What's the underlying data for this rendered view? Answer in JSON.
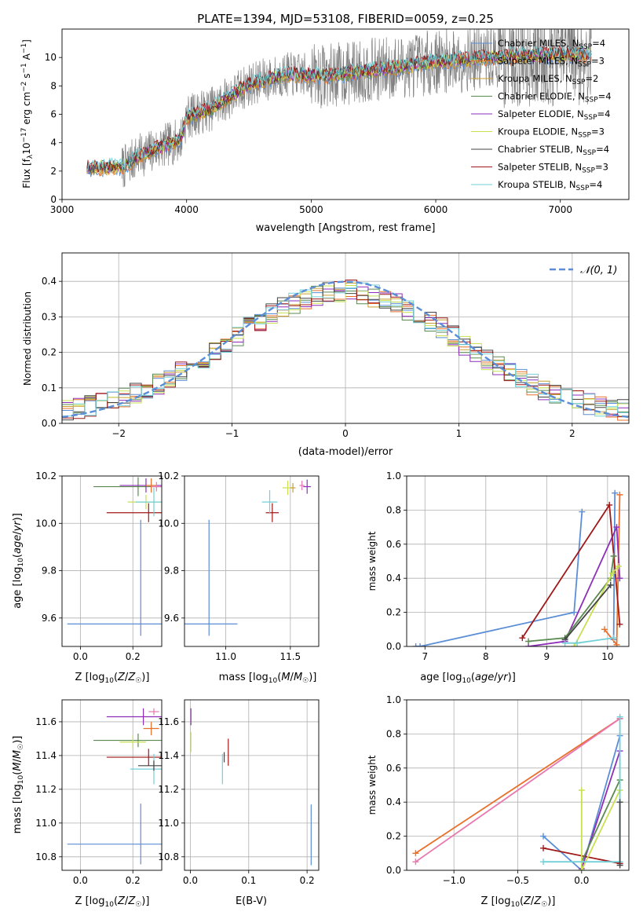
{
  "figure": {
    "title": "PLATE=1394, MJD=53108, FIBERID=0059, z=0.25"
  },
  "colors": {
    "chabrier_miles": "#5b8ed6",
    "salpeter_miles": "#e8702a",
    "kroupa_miles": "#c8a030",
    "chabrier_elodie": "#5a8a50",
    "salpeter_elodie": "#8e2eb8",
    "kroupa_elodie": "#c8e050",
    "chabrier_stelib": "#444444",
    "salpeter_stelib": "#a01818",
    "kroupa_stelib": "#70d0d8",
    "gauss": "#5b8ed6",
    "grid": "#b0b0b0",
    "data_gray": "#808080",
    "pink": "#e878b0"
  },
  "chart_data": [
    {
      "id": "spectrum",
      "type": "line",
      "xlabel": "wavelength [Angstrom, rest frame]",
      "ylabel": "Flux [f_λ10^-17 erg cm^-2 s^-1 A^-1]",
      "xlim": [
        3000,
        7550
      ],
      "ylim": [
        0,
        12
      ],
      "xticks": [
        3000,
        4000,
        5000,
        6000,
        7000
      ],
      "yticks": [
        0,
        2,
        4,
        6,
        8,
        10
      ],
      "legend_position": "upper-right",
      "legend": [
        {
          "name": "Chabrier MILES, N_SSP=4",
          "color": "#5b8ed6"
        },
        {
          "name": "Salpeter MILES, N_SSP=3",
          "color": "#e8702a"
        },
        {
          "name": "Kroupa MILES, N_SSP=2",
          "color": "#c8a030"
        },
        {
          "name": "Chabrier ELODIE, N_SSP=4",
          "color": "#5a8a50"
        },
        {
          "name": "Salpeter ELODIE, N_SSP=4",
          "color": "#8e2eb8"
        },
        {
          "name": "Kroupa ELODIE, N_SSP=3",
          "color": "#c8e050"
        },
        {
          "name": "Chabrier STELIB, N_SSP=4",
          "color": "#444444"
        },
        {
          "name": "Salpeter STELIB, N_SSP=3",
          "color": "#a01818"
        },
        {
          "name": "Kroupa STELIB, N_SSP=4",
          "color": "#70d0d8"
        }
      ],
      "continuum": {
        "x": [
          3200,
          3500,
          3600,
          3800,
          3950,
          4000,
          4200,
          4500,
          4800,
          5100,
          5400,
          5700,
          6000,
          6300,
          6600,
          7000,
          7250
        ],
        "y": [
          2.2,
          2.3,
          3.0,
          3.7,
          4.2,
          5.8,
          6.4,
          8.1,
          8.8,
          8.7,
          9.0,
          9.3,
          9.7,
          9.9,
          10.1,
          10.2,
          10.2
        ]
      }
    },
    {
      "id": "residuals",
      "type": "bar",
      "xlabel": "(data-model)/error",
      "ylabel": "Normed distribution",
      "xlim": [
        -2.5,
        2.5
      ],
      "ylim": [
        0,
        0.48
      ],
      "xticks": [
        -2,
        -1,
        0,
        1,
        2
      ],
      "yticks": [
        0.0,
        0.1,
        0.2,
        0.3,
        0.4
      ],
      "legend": [
        {
          "name": "𝒩(0, 1)",
          "color": "#5b8ed6"
        }
      ],
      "gaussian": {
        "mu": 0,
        "sigma": 1
      }
    },
    {
      "id": "age_vs_Z",
      "type": "scatter",
      "xlabel": "Z [log10(Z/Z☉)]",
      "ylabel": "age [log10(age/yr)]",
      "xlim": [
        -0.07,
        0.31
      ],
      "ylim": [
        9.48,
        10.2
      ],
      "xticks": [
        0.0,
        0.2
      ],
      "yticks": [
        9.6,
        9.8,
        10.0,
        10.2
      ],
      "points": [
        {
          "x": 0.23,
          "y": 9.575,
          "xerr": 0.28,
          "yerr": [
            0.05,
            0.44
          ],
          "color": "#5b8ed6"
        },
        {
          "x": 0.26,
          "y": 10.045,
          "xerr": 0.16,
          "yerr": [
            0.04,
            0.04
          ],
          "color": "#a01818"
        },
        {
          "x": 0.22,
          "y": 10.155,
          "xerr": 0.17,
          "yerr": [
            0.04,
            0.04
          ],
          "color": "#5a8a50"
        },
        {
          "x": 0.25,
          "y": 10.16,
          "xerr": 0.1,
          "yerr": [
            0.03,
            0.03
          ],
          "color": "#8e2eb8"
        },
        {
          "x": 0.27,
          "y": 10.16,
          "xerr": 0.02,
          "yerr": [
            0.03,
            0.03
          ],
          "color": "#e8702a"
        },
        {
          "x": 0.25,
          "y": 10.09,
          "xerr": 0.07,
          "yerr": [
            0.03,
            0.03
          ],
          "color": "#c8e050"
        },
        {
          "x": 0.28,
          "y": 10.09,
          "xerr": 0.07,
          "yerr": [
            0.06,
            0.06
          ],
          "color": "#70d0d8"
        },
        {
          "x": 0.29,
          "y": 10.155,
          "xerr": 0.02,
          "yerr": [
            0.02,
            0.02
          ],
          "color": "#e878b0"
        }
      ]
    },
    {
      "id": "age_vs_mass",
      "type": "scatter",
      "xlabel": "mass [log10(M/M☉)]",
      "ylabel": "",
      "xlim": [
        10.68,
        11.72
      ],
      "ylim": [
        9.48,
        10.2
      ],
      "xticks": [
        11.0,
        11.5
      ],
      "yticks": [
        9.6,
        9.8,
        10.0,
        10.2
      ],
      "points": [
        {
          "x": 10.87,
          "y": 9.575,
          "xerr": 0.22,
          "yerr": [
            0.05,
            0.44
          ],
          "color": "#5b8ed6"
        },
        {
          "x": 11.36,
          "y": 10.045,
          "xerr": 0.05,
          "yerr": [
            0.04,
            0.04
          ],
          "color": "#a01818"
        },
        {
          "x": 11.34,
          "y": 10.09,
          "xerr": 0.06,
          "yerr": [
            0.05,
            0.05
          ],
          "color": "#70d0d8"
        },
        {
          "x": 11.48,
          "y": 10.15,
          "xerr": 0.04,
          "yerr": [
            0.03,
            0.03
          ],
          "color": "#c8e050"
        },
        {
          "x": 11.52,
          "y": 10.15,
          "xerr": 0.02,
          "yerr": [
            0.02,
            0.02
          ],
          "color": "#c8a030"
        },
        {
          "x": 11.63,
          "y": 10.155,
          "xerr": 0.03,
          "yerr": [
            0.03,
            0.03
          ],
          "color": "#8e2eb8"
        },
        {
          "x": 11.59,
          "y": 10.16,
          "xerr": 0.02,
          "yerr": [
            0.02,
            0.02
          ],
          "color": "#e878b0"
        }
      ]
    },
    {
      "id": "weight_vs_age",
      "type": "line",
      "xlabel": "age [log10(age/yr)]",
      "ylabel": "mass weight",
      "xlim": [
        6.7,
        10.35
      ],
      "ylim": [
        0,
        1
      ],
      "xticks": [
        7,
        8,
        9,
        10
      ],
      "yticks": [
        0.0,
        0.2,
        0.4,
        0.6,
        0.8,
        1.0
      ],
      "series": [
        {
          "color": "#5b8ed6",
          "x": [
            6.85,
            6.92,
            9.45,
            9.58
          ],
          "y": [
            0.0,
            0.0,
            0.2,
            0.79
          ]
        },
        {
          "color": "#5b8ed6",
          "x": [
            10.1,
            10.12
          ],
          "y": [
            0.04,
            0.9
          ]
        },
        {
          "color": "#e8702a",
          "x": [
            9.95,
            10.15,
            10.2
          ],
          "y": [
            0.1,
            0.01,
            0.89
          ]
        },
        {
          "color": "#8e2eb8",
          "x": [
            8.7,
            9.3,
            10.15,
            10.2
          ],
          "y": [
            0.0,
            0.03,
            0.7,
            0.4
          ]
        },
        {
          "color": "#a01818",
          "x": [
            8.6,
            10.03,
            10.2
          ],
          "y": [
            0.05,
            0.83,
            0.13
          ]
        },
        {
          "color": "#5a8a50",
          "x": [
            8.7,
            9.3,
            10.05,
            10.1
          ],
          "y": [
            0.03,
            0.05,
            0.4,
            0.53
          ]
        },
        {
          "color": "#c8e050",
          "x": [
            9.45,
            10.08,
            10.18
          ],
          "y": [
            0.0,
            0.43,
            0.47
          ]
        },
        {
          "color": "#444444",
          "x": [
            9.3,
            10.05
          ],
          "y": [
            0.04,
            0.36
          ]
        },
        {
          "color": "#70d0d8",
          "x": [
            9.3,
            9.5,
            10.1
          ],
          "y": [
            0.02,
            0.02,
            0.05
          ]
        }
      ]
    },
    {
      "id": "mass_vs_Z",
      "type": "scatter",
      "xlabel": "Z [log10(Z/Z☉)]",
      "ylabel": "mass [log10(M/M☉)]",
      "xlim": [
        -0.07,
        0.31
      ],
      "ylim": [
        10.72,
        11.73
      ],
      "xticks": [
        0.0,
        0.2
      ],
      "yticks": [
        10.8,
        11.0,
        11.2,
        11.4,
        11.6
      ],
      "points": [
        {
          "x": 0.23,
          "y": 10.875,
          "xerr": 0.28,
          "yerr": [
            0.12,
            0.24
          ],
          "color": "#5b8ed6"
        },
        {
          "x": 0.26,
          "y": 11.39,
          "xerr": 0.16,
          "yerr": [
            0.05,
            0.05
          ],
          "color": "#a01818"
        },
        {
          "x": 0.22,
          "y": 11.49,
          "xerr": 0.17,
          "yerr": [
            0.04,
            0.04
          ],
          "color": "#5a8a50"
        },
        {
          "x": 0.24,
          "y": 11.63,
          "xerr": 0.14,
          "yerr": [
            0.05,
            0.05
          ],
          "color": "#8e2eb8"
        },
        {
          "x": 0.27,
          "y": 11.56,
          "xerr": 0.03,
          "yerr": [
            0.04,
            0.04
          ],
          "color": "#e8702a"
        },
        {
          "x": 0.2,
          "y": 11.48,
          "xerr": 0.05,
          "yerr": [
            0.04,
            0.04
          ],
          "color": "#c8e050"
        },
        {
          "x": 0.28,
          "y": 11.32,
          "xerr": 0.09,
          "yerr": [
            0.09,
            0.09
          ],
          "color": "#70d0d8"
        },
        {
          "x": 0.28,
          "y": 11.66,
          "xerr": 0.02,
          "yerr": [
            0.02,
            0.02
          ],
          "color": "#e878b0"
        },
        {
          "x": 0.28,
          "y": 11.34,
          "xerr": 0.06,
          "yerr": [
            0.03,
            0.03
          ],
          "color": "#444444"
        }
      ]
    },
    {
      "id": "mass_vs_EBV",
      "type": "scatter",
      "xlabel": "E(B-V)",
      "ylabel": "",
      "xlim": [
        -0.01,
        0.22
      ],
      "ylim": [
        10.72,
        11.73
      ],
      "xticks": [
        0.0,
        0.1,
        0.2
      ],
      "yticks": [
        10.8,
        11.0,
        11.2,
        11.4,
        11.6
      ],
      "points": [
        {
          "x": 0.207,
          "y": 10.93,
          "xerr": 0.0,
          "yerr": [
            0.18,
            0.18
          ],
          "color": "#5b8ed6"
        },
        {
          "x": 0.065,
          "y": 11.42,
          "xerr": 0.0,
          "yerr": [
            0.08,
            0.08
          ],
          "color": "#a01818"
        },
        {
          "x": 0.055,
          "y": 11.32,
          "xerr": 0.0,
          "yerr": [
            0.09,
            0.09
          ],
          "color": "#70d0d8"
        },
        {
          "x": 0.058,
          "y": 11.39,
          "xerr": 0.0,
          "yerr": [
            0.03,
            0.03
          ],
          "color": "#444444"
        },
        {
          "x": 0.001,
          "y": 11.48,
          "xerr": 0.0,
          "yerr": [
            0.06,
            0.06
          ],
          "color": "#c8e050"
        },
        {
          "x": 0.001,
          "y": 11.63,
          "xerr": 0.0,
          "yerr": [
            0.05,
            0.05
          ],
          "color": "#8e2eb8"
        }
      ]
    },
    {
      "id": "weight_vs_Z",
      "type": "line",
      "xlabel": "Z [log10(Z/Z☉)]",
      "ylabel": "mass weight",
      "xlim": [
        -1.37,
        0.37
      ],
      "ylim": [
        0,
        1
      ],
      "xticks": [
        -1.0,
        -0.5,
        0.0
      ],
      "yticks": [
        0.0,
        0.2,
        0.4,
        0.6,
        0.8,
        1.0
      ],
      "series": [
        {
          "color": "#e8702a",
          "x": [
            -1.3,
            0.3
          ],
          "y": [
            0.1,
            0.89
          ]
        },
        {
          "color": "#e878b0",
          "x": [
            -1.3,
            0.3
          ],
          "y": [
            0.05,
            0.89
          ]
        },
        {
          "color": "#5b8ed6",
          "x": [
            -0.3,
            0.0,
            0.3
          ],
          "y": [
            0.2,
            0.0,
            0.79
          ]
        },
        {
          "color": "#8e2eb8",
          "x": [
            0.0,
            0.3
          ],
          "y": [
            0.01,
            0.7
          ]
        },
        {
          "color": "#a01818",
          "x": [
            -0.3,
            0.3
          ],
          "y": [
            0.13,
            0.04
          ]
        },
        {
          "color": "#5a8a50",
          "x": [
            0.0,
            0.3
          ],
          "y": [
            0.05,
            0.53
          ]
        },
        {
          "color": "#c8e050",
          "x": [
            0.0,
            0.0,
            0.3
          ],
          "y": [
            0.47,
            0.0,
            0.47
          ]
        },
        {
          "color": "#70d0d8",
          "x": [
            -0.3,
            0.3,
            0.3
          ],
          "y": [
            0.05,
            0.05,
            0.9
          ]
        },
        {
          "color": "#444444",
          "x": [
            0.3,
            0.3
          ],
          "y": [
            0.03,
            0.4
          ]
        }
      ]
    }
  ]
}
